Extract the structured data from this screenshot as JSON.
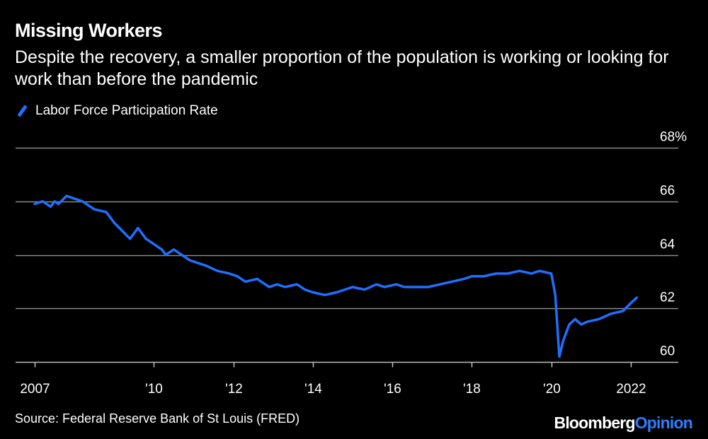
{
  "title": "Missing Workers",
  "subtitle": "Despite the recovery, a smaller proportion of the population is working or looking for work than before the pandemic",
  "source": "Source: Federal Reserve Bank of St Louis (FRED)",
  "brand": {
    "part1": "Bloomberg",
    "part2": "Opinion"
  },
  "colors": {
    "line": "#1f6fff",
    "grid": "#8a8a8a",
    "background": "#000000",
    "text": "#ffffff"
  },
  "chart_data": {
    "type": "line",
    "title": "Missing Workers",
    "subtitle": "Despite the recovery, a smaller proportion of the population is working or looking for work than before the pandemic",
    "xlabel": "",
    "ylabel": "",
    "xlim": [
      2007.0,
      2023.0
    ],
    "ylim": [
      59.95,
      68
    ],
    "y_ticks": [
      60,
      62,
      64,
      66,
      68
    ],
    "y_tick_labels": [
      "60",
      "62",
      "64",
      "66",
      "68%"
    ],
    "x_ticks": [
      2007,
      2010,
      2012,
      2014,
      2016,
      2018,
      2020,
      2022
    ],
    "x_tick_labels": [
      "2007",
      "'10",
      "'12",
      "'14",
      "'16",
      "'18",
      "'20",
      "2022"
    ],
    "legend": [
      "Labor Force Participation Rate"
    ],
    "legend_position": "top-left",
    "grid": true,
    "series": [
      {
        "name": "Labor Force Participation Rate",
        "x": [
          2007.0,
          2007.2,
          2007.4,
          2007.5,
          2007.6,
          2007.8,
          2008.0,
          2008.2,
          2008.3,
          2008.5,
          2008.8,
          2009.0,
          2009.2,
          2009.4,
          2009.6,
          2009.8,
          2010.0,
          2010.2,
          2010.3,
          2010.5,
          2010.7,
          2010.9,
          2011.1,
          2011.3,
          2011.6,
          2011.9,
          2012.1,
          2012.3,
          2012.6,
          2012.9,
          2013.1,
          2013.3,
          2013.6,
          2013.8,
          2014.0,
          2014.3,
          2014.6,
          2015.0,
          2015.3,
          2015.6,
          2015.8,
          2016.1,
          2016.3,
          2016.6,
          2016.9,
          2017.2,
          2017.5,
          2017.8,
          2018.0,
          2018.3,
          2018.6,
          2018.9,
          2019.2,
          2019.5,
          2019.7,
          2020.0,
          2020.1,
          2020.2,
          2020.3,
          2020.45,
          2020.6,
          2020.75,
          2020.9,
          2021.2,
          2021.5,
          2021.8,
          2022.0,
          2022.15
        ],
        "values": [
          65.9,
          66.0,
          65.8,
          66.0,
          65.9,
          66.2,
          66.1,
          66.0,
          65.9,
          65.7,
          65.6,
          65.2,
          64.9,
          64.6,
          65.0,
          64.6,
          64.4,
          64.2,
          64.0,
          64.2,
          64.0,
          63.8,
          63.7,
          63.6,
          63.4,
          63.3,
          63.2,
          63.0,
          63.1,
          62.8,
          62.9,
          62.8,
          62.9,
          62.7,
          62.6,
          62.5,
          62.6,
          62.8,
          62.7,
          62.9,
          62.8,
          62.9,
          62.8,
          62.8,
          62.8,
          62.9,
          63.0,
          63.1,
          63.2,
          63.2,
          63.3,
          63.3,
          63.4,
          63.3,
          63.4,
          63.3,
          62.5,
          60.2,
          60.8,
          61.4,
          61.6,
          61.4,
          61.5,
          61.6,
          61.8,
          61.9,
          62.2,
          62.4
        ]
      }
    ]
  }
}
